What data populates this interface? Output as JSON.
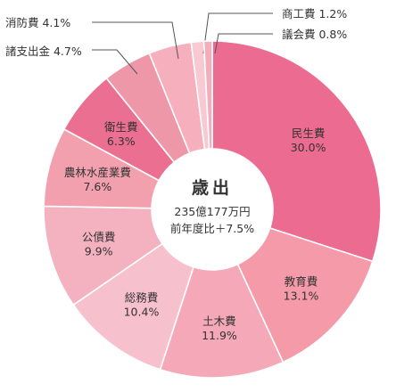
{
  "chart_data": {
    "type": "pie",
    "donut": true,
    "center": {
      "title": "歳出",
      "total": "235億177万円",
      "change": "前年度比＋7.5%"
    },
    "slices": [
      {
        "name": "民生費",
        "value": 30.0,
        "value_label": "30.0%",
        "color": "#eb6b91",
        "label_inside": true
      },
      {
        "name": "教育費",
        "value": 13.1,
        "value_label": "13.1%",
        "color": "#f49aa8",
        "label_inside": true
      },
      {
        "name": "土木費",
        "value": 11.9,
        "value_label": "11.9%",
        "color": "#f5a8b7",
        "label_inside": true
      },
      {
        "name": "総務費",
        "value": 10.4,
        "value_label": "10.4%",
        "color": "#f7c0cd",
        "label_inside": true
      },
      {
        "name": "公債費",
        "value": 9.9,
        "value_label": "9.9%",
        "color": "#f4b1c0",
        "label_inside": true
      },
      {
        "name": "農林水産業費",
        "value": 7.6,
        "value_label": "7.6%",
        "color": "#f2a0ae",
        "label_inside": true
      },
      {
        "name": "衛生費",
        "value": 6.3,
        "value_label": "6.3%",
        "color": "#ea6f90",
        "label_inside": true
      },
      {
        "name": "諸支出金",
        "value": 4.7,
        "value_label": "4.7%",
        "color": "#ee97a8",
        "label_inside": false
      },
      {
        "name": "消防費",
        "value": 4.1,
        "value_label": "4.1%",
        "color": "#f6b0bd",
        "label_inside": false
      },
      {
        "name": "商工費",
        "value": 1.2,
        "value_label": "1.2%",
        "color": "#f8c9d3",
        "label_inside": false
      },
      {
        "name": "議会費",
        "value": 0.8,
        "value_label": "0.8%",
        "color": "#f2aebb",
        "label_inside": false
      }
    ]
  }
}
